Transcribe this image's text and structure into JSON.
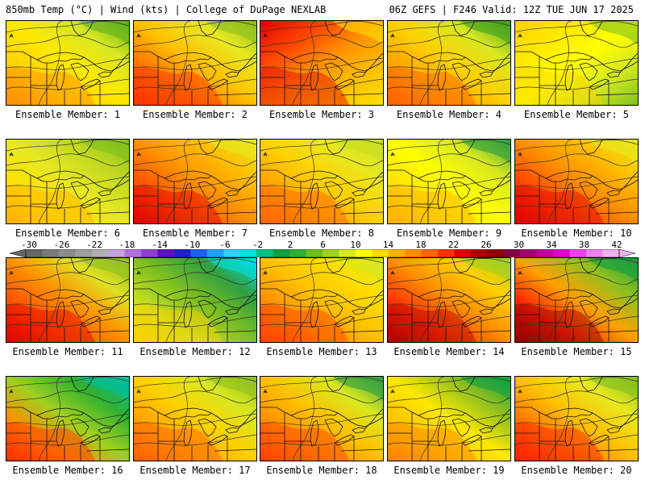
{
  "header": {
    "left": "850mb Temp (°C) | Wind (kts) | College of DuPage NEXLAB",
    "right": "06Z GEFS | F246 Valid: 12Z TUE JUN 17 2025"
  },
  "colorbar": {
    "labels": [
      "-30",
      "-26",
      "-22",
      "-18",
      "-14",
      "-10",
      "-6",
      "-2",
      "2",
      "6",
      "10",
      "14",
      "18",
      "22",
      "26",
      "30",
      "34",
      "38",
      "42"
    ],
    "colors": [
      "#666666",
      "#7a7a7a",
      "#8c8c8c",
      "#9e9e9e",
      "#b0b0b0",
      "#c8a0e0",
      "#b070e0",
      "#9040d0",
      "#6010c0",
      "#2020d0",
      "#2060f0",
      "#20a0ff",
      "#30d0ff",
      "#00e0e0",
      "#00c080",
      "#10a040",
      "#30b030",
      "#70c020",
      "#a0d020",
      "#d8e820",
      "#ffff00",
      "#ffd800",
      "#ffb000",
      "#ff8c00",
      "#ff6400",
      "#ff3000",
      "#e00000",
      "#b00000",
      "#900000",
      "#800040",
      "#a00070",
      "#c000a0",
      "#e000d0",
      "#f040f0",
      "#f080f0",
      "#f0b0f0"
    ]
  },
  "panels": [
    {
      "label": "Ensemble Member: 1",
      "scheme": "m1"
    },
    {
      "label": "Ensemble Member: 2",
      "scheme": "m2"
    },
    {
      "label": "Ensemble Member: 3",
      "scheme": "m3"
    },
    {
      "label": "Ensemble Member: 4",
      "scheme": "m4"
    },
    {
      "label": "Ensemble Member: 5",
      "scheme": "m5"
    },
    {
      "label": "Ensemble Member: 6",
      "scheme": "m6"
    },
    {
      "label": "Ensemble Member: 7",
      "scheme": "m7"
    },
    {
      "label": "Ensemble Member: 8",
      "scheme": "m8"
    },
    {
      "label": "Ensemble Member: 9",
      "scheme": "m9"
    },
    {
      "label": "Ensemble Member: 10",
      "scheme": "m10"
    },
    {
      "label": "Ensemble Member: 11",
      "scheme": "m11"
    },
    {
      "label": "Ensemble Member: 12",
      "scheme": "m12"
    },
    {
      "label": "Ensemble Member: 13",
      "scheme": "m13"
    },
    {
      "label": "Ensemble Member: 14",
      "scheme": "m14"
    },
    {
      "label": "Ensemble Member: 15",
      "scheme": "m15"
    },
    {
      "label": "Ensemble Member: 16",
      "scheme": "m16"
    },
    {
      "label": "Ensemble Member: 17",
      "scheme": "m17"
    },
    {
      "label": "Ensemble Member: 18",
      "scheme": "m18"
    },
    {
      "label": "Ensemble Member: 19",
      "scheme": "m19"
    },
    {
      "label": "Ensemble Member: 20",
      "scheme": "m20"
    }
  ]
}
